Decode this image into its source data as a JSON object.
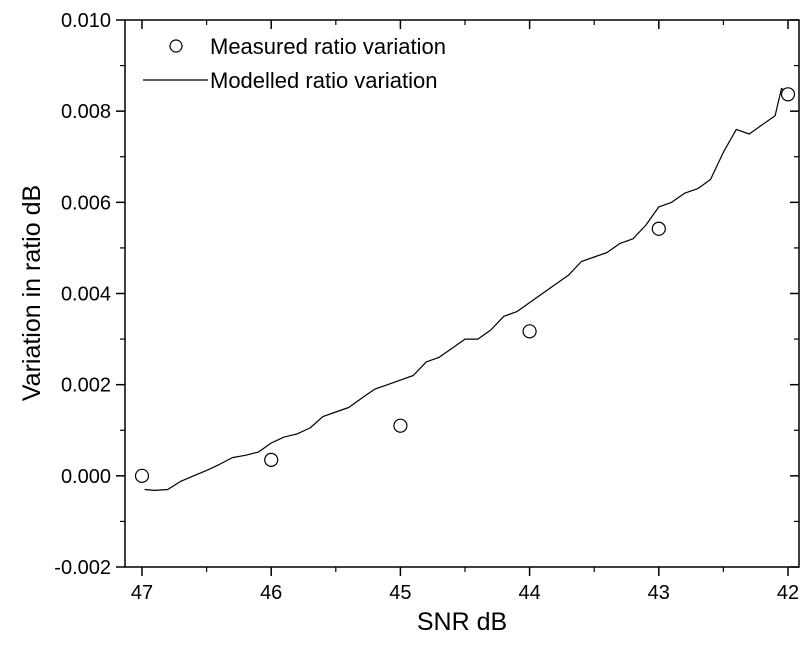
{
  "chart_data": {
    "type": "line",
    "xlabel": "SNR dB",
    "ylabel": "Variation in ratio dB",
    "xlim": [
      47,
      42
    ],
    "ylim": [
      -0.002,
      0.01
    ],
    "x_reversed": true,
    "x_ticks": [
      47,
      46,
      45,
      44,
      43,
      42
    ],
    "x_tick_labels": [
      "47",
      "46",
      "45",
      "44",
      "43",
      "42"
    ],
    "y_ticks": [
      -0.002,
      0,
      0.002,
      0.004,
      0.006,
      0.008,
      0.01
    ],
    "y_tick_labels": [
      "-0.002",
      "0.000",
      "0.002",
      "0.004",
      "0.006",
      "0.008",
      "0.010"
    ],
    "grid": false,
    "legend_position": "top-left",
    "series": [
      {
        "name": "Measured ratio variation",
        "kind": "scatter",
        "marker": "open-circle",
        "x": [
          47,
          46,
          45,
          44,
          43,
          42
        ],
        "y": [
          0.0,
          0.00035,
          0.0011,
          0.00317,
          0.00542,
          0.00837
        ]
      },
      {
        "name": "Modelled ratio variation",
        "kind": "line",
        "x": [
          46.98,
          46.9,
          46.8,
          46.7,
          46.6,
          46.5,
          46.4,
          46.3,
          46.2,
          46.1,
          46.0,
          45.9,
          45.8,
          45.7,
          45.6,
          45.5,
          45.4,
          45.3,
          45.2,
          45.1,
          45.0,
          44.9,
          44.8,
          44.7,
          44.6,
          44.5,
          44.4,
          44.3,
          44.2,
          44.1,
          44.0,
          43.9,
          43.8,
          43.7,
          43.6,
          43.5,
          43.4,
          43.3,
          43.2,
          43.1,
          43.0,
          42.9,
          42.8,
          42.7,
          42.6,
          42.5,
          42.4,
          42.3,
          42.2,
          42.1,
          42.05,
          42.0
        ],
        "y": [
          -0.0003,
          -0.00032,
          -0.0003,
          -0.00012,
          0.0,
          0.00012,
          0.00025,
          0.0004,
          0.00045,
          0.00052,
          0.00072,
          0.00085,
          0.00092,
          0.00105,
          0.0013,
          0.0014,
          0.0015,
          0.0017,
          0.0019,
          0.002,
          0.0021,
          0.0022,
          0.0025,
          0.0026,
          0.0028,
          0.003,
          0.003,
          0.0032,
          0.0035,
          0.0036,
          0.0038,
          0.004,
          0.0042,
          0.0044,
          0.0047,
          0.0048,
          0.0049,
          0.0051,
          0.0052,
          0.0055,
          0.0059,
          0.006,
          0.0062,
          0.0063,
          0.0065,
          0.0071,
          0.0076,
          0.0075,
          0.0077,
          0.0079,
          0.0085,
          0.0084
        ]
      }
    ]
  }
}
